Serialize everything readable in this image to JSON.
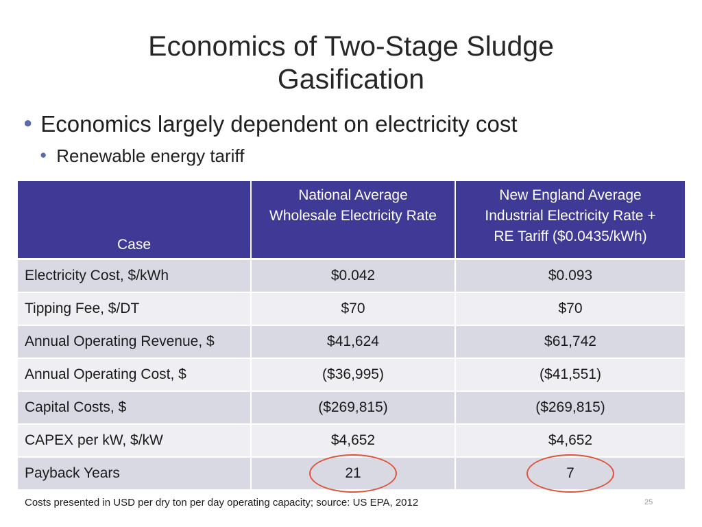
{
  "slide": {
    "title_line1": "Economics of Two-Stage Sludge",
    "title_line2": "Gasification",
    "bullet_level1": "Economics largely dependent on electricity cost",
    "bullet_level2": "Renewable energy tariff",
    "footnote": "Costs presented in USD per dry ton per day operating capacity; source: US EPA, 2012",
    "page_number": "25",
    "highlight_color": "#e0533a",
    "header_color": "#3f3a96"
  },
  "table": {
    "headers": {
      "case": "Case",
      "col2_line1": "National Average",
      "col2_line2": "Wholesale Electricity Rate",
      "col3_line1": "New England Average",
      "col3_line2": "Industrial Electricity Rate +",
      "col3_line3": "RE Tariff ($0.0435/kWh)"
    },
    "rows": [
      {
        "label": "Electricity Cost, $/kWh",
        "national": "$0.042",
        "new_england": "$0.093"
      },
      {
        "label": "Tipping Fee, $/DT",
        "national": "$70",
        "new_england": "$70"
      },
      {
        "label": "Annual Operating Revenue, $",
        "national": "$41,624",
        "new_england": "$61,742"
      },
      {
        "label": "Annual Operating Cost, $",
        "national": "($36,995)",
        "new_england": "($41,551)"
      },
      {
        "label": "Capital Costs, $",
        "national": "($269,815)",
        "new_england": "($269,815)"
      },
      {
        "label": "CAPEX per kW, $/kW",
        "national": "$4,652",
        "new_england": "$4,652"
      },
      {
        "label": "Payback Years",
        "national": "21",
        "new_england": "7"
      }
    ]
  }
}
